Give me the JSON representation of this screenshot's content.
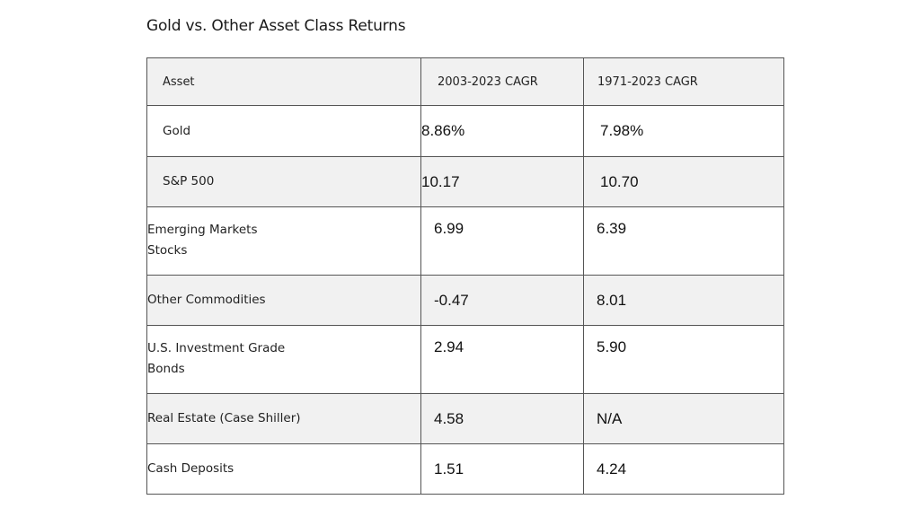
{
  "title": "Gold vs. Other Asset Class Returns",
  "table": {
    "headers": [
      "Asset",
      "2003-2023 CAGR",
      "1971-2023 CAGR"
    ],
    "rows": [
      {
        "asset": "Gold",
        "cagr_2003_2023": "8.86%",
        "cagr_1971_2023": "7.98%"
      },
      {
        "asset": "S&P 500",
        "cagr_2003_2023": "10.17",
        "cagr_1971_2023": "10.70"
      },
      {
        "asset": "Emerging Markets Stocks",
        "cagr_2003_2023": "6.99",
        "cagr_1971_2023": "6.39"
      },
      {
        "asset": "Other Commodities",
        "cagr_2003_2023": "-0.47",
        "cagr_1971_2023": "8.01"
      },
      {
        "asset": "U.S. Investment Grade Bonds",
        "cagr_2003_2023": "2.94",
        "cagr_1971_2023": "5.90"
      },
      {
        "asset": "Real Estate (Case Shiller)",
        "cagr_2003_2023": "4.58",
        "cagr_1971_2023": "N/A"
      },
      {
        "asset": "Cash Deposits",
        "cagr_2003_2023": "1.51",
        "cagr_1971_2023": "4.24"
      }
    ]
  },
  "colors": {
    "header_bg": "#f1f1f1",
    "shaded_row_bg": "#f1f1f1",
    "border": "#555555",
    "text": "#222222"
  }
}
